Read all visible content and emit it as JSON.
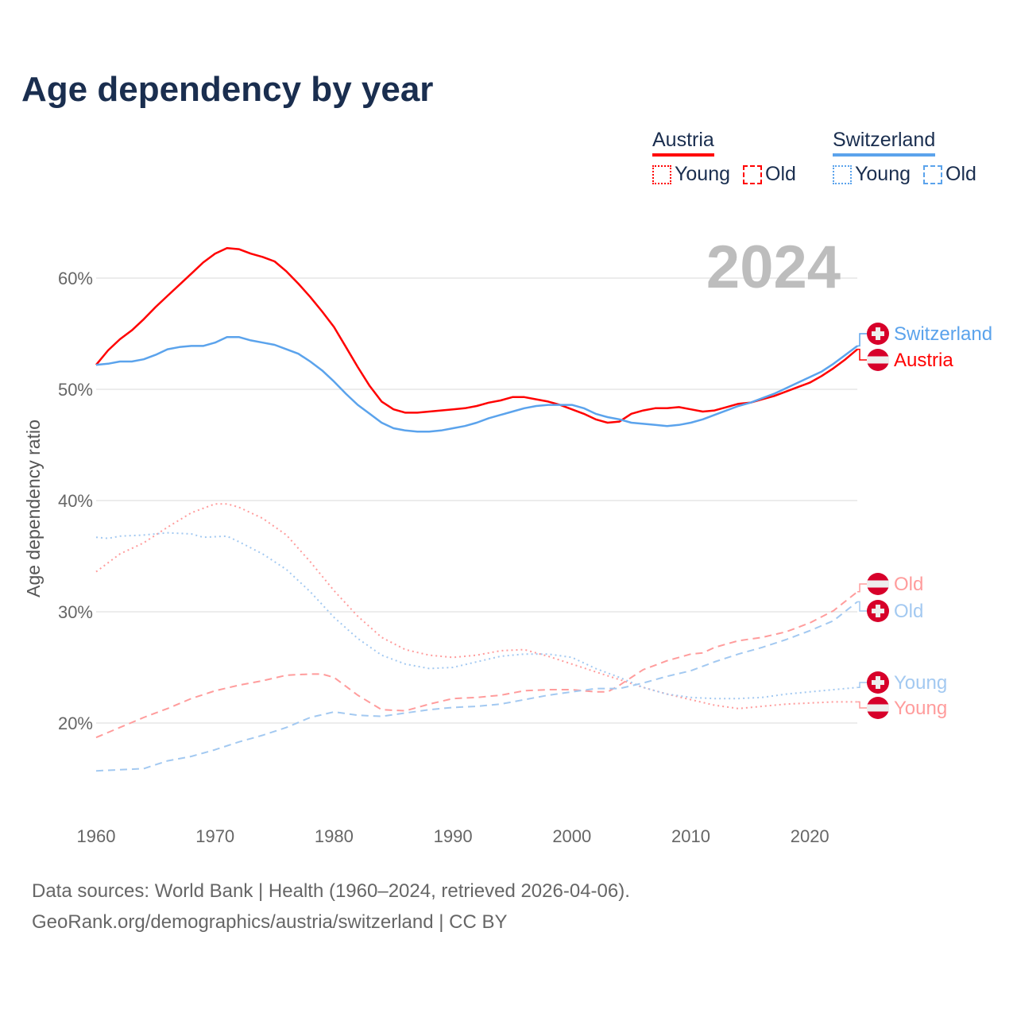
{
  "title": "Age dependency by year",
  "legend": {
    "austria": {
      "label": "Austria",
      "young": "Young",
      "old": "Old"
    },
    "switzerland": {
      "label": "Switzerland",
      "young": "Young",
      "old": "Old"
    }
  },
  "year_label": "2024",
  "colors": {
    "austria": "#ff0000",
    "austria_light": "#ff9c9c",
    "switzerland": "#5ba3ec",
    "switzerland_light": "#a3c9f1",
    "flag_red": "#d7002a",
    "title": "#1a2e4f"
  },
  "source": {
    "line1": "Data sources: World Bank | Health (1960–2024, retrieved 2026-04-06).",
    "line2": "GeoRank.org/demographics/austria/switzerland | CC BY"
  },
  "chart_data": {
    "type": "line",
    "title": "Age dependency by year",
    "xlabel": "",
    "ylabel": "Age dependency ratio",
    "xlim": [
      1960,
      2024
    ],
    "ylim": [
      12.9,
      66
    ],
    "x_ticks": [
      "1960",
      "1970",
      "1980",
      "1990",
      "2000",
      "2010",
      "2020"
    ],
    "y_ticks": [
      {
        "v": 20,
        "label": "20%"
      },
      {
        "v": 30,
        "label": "30%"
      },
      {
        "v": 40,
        "label": "40%"
      },
      {
        "v": 50,
        "label": "50%"
      },
      {
        "v": 60,
        "label": "60%"
      }
    ],
    "grid": true,
    "legend_position": "top-right",
    "series": [
      {
        "name": "Austria",
        "country": "austria",
        "kind": "total",
        "end_label": "Austria",
        "x": [
          1960,
          1961,
          1962,
          1963,
          1964,
          1965,
          1966,
          1967,
          1968,
          1969,
          1970,
          1971,
          1972,
          1973,
          1974,
          1975,
          1976,
          1977,
          1978,
          1979,
          1980,
          1981,
          1982,
          1983,
          1984,
          1985,
          1986,
          1987,
          1988,
          1989,
          1990,
          1991,
          1992,
          1993,
          1994,
          1995,
          1996,
          1997,
          1998,
          1999,
          2000,
          2001,
          2002,
          2003,
          2004,
          2005,
          2006,
          2007,
          2008,
          2009,
          2010,
          2011,
          2012,
          2013,
          2014,
          2015,
          2016,
          2017,
          2018,
          2019,
          2020,
          2021,
          2022,
          2023,
          2024
        ],
        "y": [
          52.2,
          53.5,
          54.5,
          55.3,
          56.3,
          57.4,
          58.4,
          59.4,
          60.4,
          61.4,
          62.2,
          62.7,
          62.6,
          62.2,
          61.9,
          61.5,
          60.6,
          59.5,
          58.3,
          57.0,
          55.6,
          53.8,
          52.0,
          50.3,
          48.9,
          48.2,
          47.9,
          47.9,
          48.0,
          48.1,
          48.2,
          48.3,
          48.5,
          48.8,
          49.0,
          49.3,
          49.3,
          49.1,
          48.9,
          48.6,
          48.2,
          47.8,
          47.3,
          47.0,
          47.1,
          47.8,
          48.1,
          48.3,
          48.3,
          48.4,
          48.2,
          48.0,
          48.1,
          48.4,
          48.7,
          48.8,
          49.1,
          49.4,
          49.8,
          50.2,
          50.6,
          51.2,
          51.9,
          52.7,
          53.6
        ]
      },
      {
        "name": "Switzerland",
        "country": "switzerland",
        "kind": "total",
        "end_label": "Switzerland",
        "x": [
          1960,
          1961,
          1962,
          1963,
          1964,
          1965,
          1966,
          1967,
          1968,
          1969,
          1970,
          1971,
          1972,
          1973,
          1974,
          1975,
          1976,
          1977,
          1978,
          1979,
          1980,
          1981,
          1982,
          1983,
          1984,
          1985,
          1986,
          1987,
          1988,
          1989,
          1990,
          1991,
          1992,
          1993,
          1994,
          1995,
          1996,
          1997,
          1998,
          1999,
          2000,
          2001,
          2002,
          2003,
          2004,
          2005,
          2006,
          2007,
          2008,
          2009,
          2010,
          2011,
          2012,
          2013,
          2014,
          2015,
          2016,
          2017,
          2018,
          2019,
          2020,
          2021,
          2022,
          2023,
          2024
        ],
        "y": [
          52.2,
          52.3,
          52.5,
          52.5,
          52.7,
          53.1,
          53.6,
          53.8,
          53.9,
          53.9,
          54.2,
          54.7,
          54.7,
          54.4,
          54.2,
          54.0,
          53.6,
          53.2,
          52.5,
          51.7,
          50.7,
          49.6,
          48.6,
          47.8,
          47.0,
          46.5,
          46.3,
          46.2,
          46.2,
          46.3,
          46.5,
          46.7,
          47.0,
          47.4,
          47.7,
          48.0,
          48.3,
          48.5,
          48.6,
          48.6,
          48.6,
          48.3,
          47.8,
          47.5,
          47.3,
          47.0,
          46.9,
          46.8,
          46.7,
          46.8,
          47.0,
          47.3,
          47.7,
          48.1,
          48.5,
          48.8,
          49.2,
          49.6,
          50.1,
          50.6,
          51.1,
          51.6,
          52.3,
          53.1,
          53.9
        ]
      },
      {
        "name": "Austria Young",
        "country": "austria",
        "kind": "young",
        "end_label": "Young",
        "x": [
          1960,
          1962,
          1964,
          1966,
          1968,
          1970,
          1971,
          1972,
          1974,
          1976,
          1978,
          1980,
          1982,
          1984,
          1986,
          1988,
          1990,
          1992,
          1994,
          1996,
          1998,
          2000,
          2002,
          2004,
          2006,
          2008,
          2010,
          2012,
          2014,
          2016,
          2018,
          2020,
          2022,
          2024
        ],
        "y": [
          33.6,
          35.2,
          36.2,
          37.6,
          38.9,
          39.7,
          39.7,
          39.4,
          38.4,
          36.9,
          34.5,
          31.9,
          29.6,
          27.7,
          26.6,
          26.1,
          25.9,
          26.1,
          26.5,
          26.6,
          26.0,
          25.3,
          24.6,
          23.9,
          23.2,
          22.6,
          22.1,
          21.6,
          21.3,
          21.5,
          21.7,
          21.8,
          21.9,
          21.9
        ]
      },
      {
        "name": "Austria Old",
        "country": "austria",
        "kind": "old",
        "end_label": "Old",
        "x": [
          1960,
          1962,
          1964,
          1966,
          1968,
          1970,
          1972,
          1974,
          1976,
          1978,
          1979,
          1980,
          1982,
          1984,
          1986,
          1988,
          1990,
          1992,
          1994,
          1996,
          1998,
          2000,
          2002,
          2003,
          2004,
          2006,
          2008,
          2010,
          2011,
          2012,
          2014,
          2016,
          2018,
          2020,
          2022,
          2024
        ],
        "y": [
          18.7,
          19.6,
          20.5,
          21.3,
          22.2,
          22.9,
          23.4,
          23.8,
          24.3,
          24.4,
          24.4,
          24.1,
          22.5,
          21.2,
          21.1,
          21.7,
          22.2,
          22.3,
          22.5,
          22.9,
          23.0,
          23.0,
          22.8,
          22.8,
          23.4,
          24.8,
          25.6,
          26.2,
          26.3,
          26.8,
          27.4,
          27.7,
          28.2,
          29.0,
          30.1,
          31.8
        ]
      },
      {
        "name": "Switzerland Young",
        "country": "switzerland",
        "kind": "young",
        "end_label": "Young",
        "x": [
          1960,
          1961,
          1962,
          1964,
          1966,
          1968,
          1969,
          1971,
          1972,
          1974,
          1976,
          1978,
          1980,
          1982,
          1984,
          1986,
          1988,
          1990,
          1992,
          1994,
          1996,
          1998,
          2000,
          2002,
          2004,
          2006,
          2008,
          2010,
          2012,
          2014,
          2016,
          2018,
          2020,
          2022,
          2024
        ],
        "y": [
          36.7,
          36.6,
          36.8,
          36.9,
          37.1,
          37.0,
          36.7,
          36.8,
          36.3,
          35.2,
          33.8,
          31.8,
          29.5,
          27.6,
          26.1,
          25.3,
          24.9,
          25.0,
          25.5,
          26.0,
          26.2,
          26.2,
          25.9,
          24.9,
          24.1,
          23.2,
          22.6,
          22.3,
          22.2,
          22.2,
          22.3,
          22.6,
          22.8,
          23.0,
          23.2
        ]
      },
      {
        "name": "Switzerland Old",
        "country": "switzerland",
        "kind": "old",
        "end_label": "Old",
        "x": [
          1960,
          1962,
          1964,
          1966,
          1968,
          1970,
          1972,
          1974,
          1976,
          1978,
          1980,
          1982,
          1984,
          1986,
          1988,
          1990,
          1992,
          1994,
          1996,
          1998,
          2000,
          2002,
          2004,
          2006,
          2008,
          2010,
          2012,
          2014,
          2016,
          2018,
          2020,
          2022,
          2024
        ],
        "y": [
          15.7,
          15.8,
          15.9,
          16.6,
          17.0,
          17.6,
          18.3,
          18.9,
          19.6,
          20.5,
          21.0,
          20.7,
          20.6,
          20.9,
          21.2,
          21.4,
          21.5,
          21.7,
          22.1,
          22.5,
          22.8,
          23.1,
          23.1,
          23.6,
          24.2,
          24.7,
          25.5,
          26.2,
          26.8,
          27.5,
          28.3,
          29.2,
          30.9
        ]
      }
    ]
  }
}
